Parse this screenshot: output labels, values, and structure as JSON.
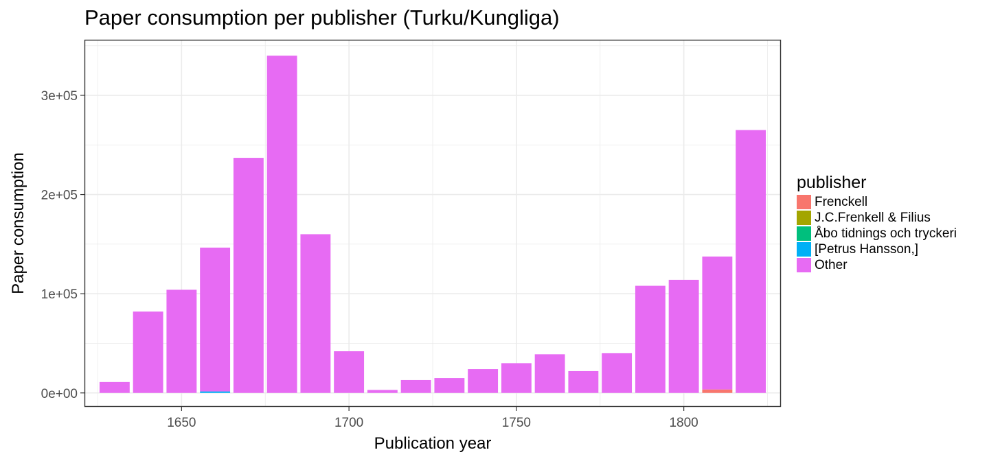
{
  "chart_data": {
    "type": "bar",
    "title": "Paper consumption per publisher (Turku/Kungliga)",
    "xlabel": "Publication year",
    "ylabel": "Paper consumption",
    "stacked": true,
    "x": [
      1630,
      1640,
      1650,
      1660,
      1670,
      1680,
      1690,
      1700,
      1710,
      1720,
      1730,
      1740,
      1750,
      1760,
      1770,
      1780,
      1790,
      1800,
      1810,
      1820
    ],
    "xlim": [
      1621,
      1829
    ],
    "ylim": [
      -14000,
      356000
    ],
    "xticks": [
      1650,
      1700,
      1750,
      1800
    ],
    "xtick_labels": [
      "1650",
      "1700",
      "1750",
      "1800"
    ],
    "yticks": [
      0,
      100000,
      200000,
      300000
    ],
    "ytick_labels": [
      "0e+00",
      "1e+05",
      "2e+05",
      "3e+05"
    ],
    "grid": true,
    "legend_title": "publisher",
    "legend_position": "right",
    "series": [
      {
        "name": "Frenckell",
        "color": "#F8766D",
        "values": [
          0,
          0,
          0,
          0,
          0,
          0,
          0,
          0,
          0,
          0,
          0,
          0,
          0,
          0,
          0,
          0,
          0,
          0,
          3500,
          0
        ]
      },
      {
        "name": "J.C.Frenkell & Filius",
        "color": "#A3A500",
        "values": [
          0,
          0,
          0,
          0,
          0,
          0,
          0,
          0,
          0,
          0,
          0,
          0,
          0,
          0,
          0,
          0,
          0,
          0,
          0,
          0
        ]
      },
      {
        "name": "Åbo tidnings och tryckeri",
        "color": "#00BF7D",
        "values": [
          0,
          0,
          0,
          0,
          0,
          0,
          0,
          0,
          0,
          0,
          0,
          0,
          0,
          0,
          0,
          0,
          0,
          0,
          0,
          0
        ]
      },
      {
        "name": "[Petrus Hansson,]",
        "color": "#00B0F6",
        "values": [
          0,
          0,
          0,
          1500,
          0,
          0,
          0,
          0,
          0,
          0,
          0,
          0,
          0,
          0,
          0,
          0,
          0,
          0,
          0,
          0
        ]
      },
      {
        "name": "Other",
        "color": "#E76BF3",
        "values": [
          11000,
          82000,
          104000,
          145000,
          237000,
          340000,
          160000,
          42000,
          3000,
          13000,
          15000,
          24000,
          30000,
          39000,
          22000,
          40000,
          108000,
          114000,
          134000,
          265000
        ]
      }
    ]
  }
}
